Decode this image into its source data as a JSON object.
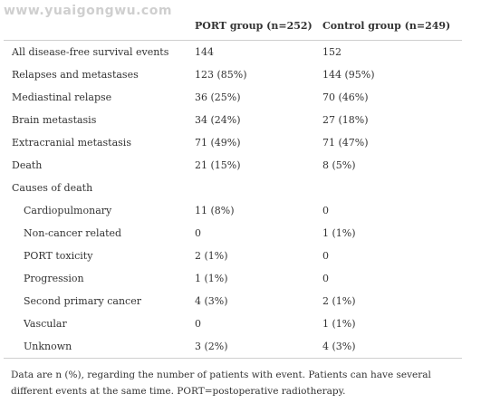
{
  "watermark": "www.yuaigongwu.com",
  "table": {
    "headers": [
      "",
      "PORT group (n=252)",
      "Control group (n=249)"
    ],
    "rows": [
      {
        "label": "All disease-free survival events",
        "port": "144",
        "control": "152",
        "indent": false
      },
      {
        "label": "Relapses and metastases",
        "port": "123 (85%)",
        "control": "144 (95%)",
        "indent": false
      },
      {
        "label": "Mediastinal relapse",
        "port": "36 (25%)",
        "control": "70 (46%)",
        "indent": false
      },
      {
        "label": "Brain metastasis",
        "port": "34 (24%)",
        "control": "27 (18%)",
        "indent": false
      },
      {
        "label": "Extracranial metastasis",
        "port": "71 (49%)",
        "control": "71 (47%)",
        "indent": false
      },
      {
        "label": "Death",
        "port": "21 (15%)",
        "control": "8 (5%)",
        "indent": false
      },
      {
        "label": "Causes of death",
        "port": "",
        "control": "",
        "indent": false
      },
      {
        "label": "Cardiopulmonary",
        "port": "11 (8%)",
        "control": "0",
        "indent": true
      },
      {
        "label": "Non-cancer related",
        "port": "0",
        "control": "1 (1%)",
        "indent": true
      },
      {
        "label": "PORT toxicity",
        "port": "2 (1%)",
        "control": "0",
        "indent": true
      },
      {
        "label": "Progression",
        "port": "1 (1%)",
        "control": "0",
        "indent": true
      },
      {
        "label": "Second primary cancer",
        "port": "4 (3%)",
        "control": "2 (1%)",
        "indent": true
      },
      {
        "label": "Vascular",
        "port": "0",
        "control": "1 (1%)",
        "indent": true
      },
      {
        "label": "Unknown",
        "port": "3 (2%)",
        "control": "4 (3%)",
        "indent": true
      }
    ]
  },
  "footnote": "Data are n (%), regarding the number of patients with event. Patients can have several different events at the same time. PORT=postoperative radiotherapy."
}
